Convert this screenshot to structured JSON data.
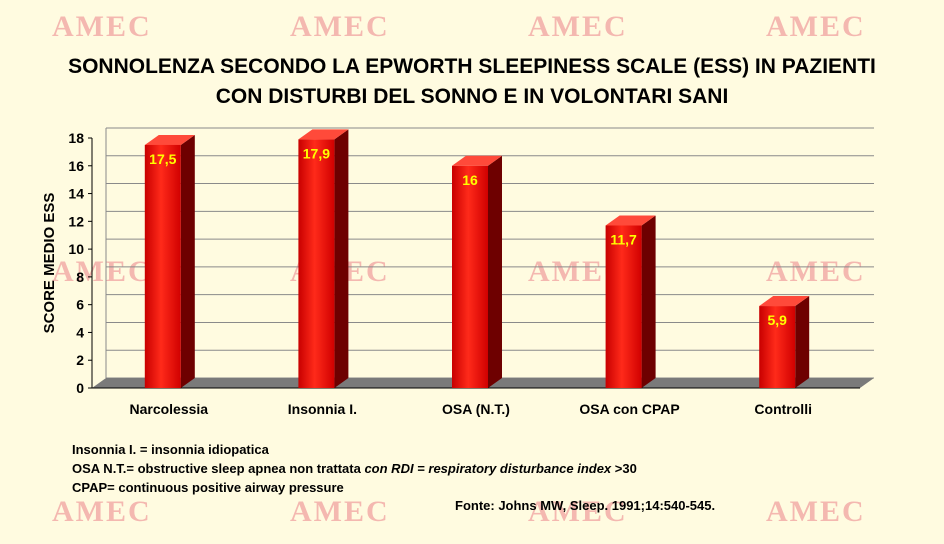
{
  "watermark": {
    "text": "AMEC"
  },
  "title": {
    "line1": "SONNOLENZA SECONDO LA EPWORTH SLEEPINESS SCALE (ESS) IN PAZIENTI",
    "line2": "CON DISTURBI DEL SONNO E    IN   VOLONTARI SANI"
  },
  "chart_data": {
    "type": "bar",
    "categories": [
      "Narcolessia",
      "Insonnia I.",
      "OSA (N.T.)",
      "OSA con CPAP",
      "Controlli"
    ],
    "values": [
      17.5,
      17.9,
      16,
      11.7,
      5.9
    ],
    "value_labels": [
      "17,5",
      "17,9",
      "16",
      "11,7",
      "5,9"
    ],
    "ylabel": "SCORE MEDIO ESS",
    "ylim": [
      0,
      18
    ],
    "yticks": [
      0,
      2,
      4,
      6,
      8,
      10,
      12,
      14,
      16,
      18
    ],
    "grid": true,
    "bar_color": "#e00000",
    "label_color": "#ffff00"
  },
  "notes": {
    "line1": "Insonnia I. = insonnia idiopatica",
    "line2_a": " OSA  N.T.= obstructive sleep apnea non trattata ",
    "line2_b": "con RDI = respiratory disturbance index",
    "line2_c": " >30",
    "line3": "CPAP= continuous positive airway pressure"
  },
  "source": "Fonte: Johns MW, Sleep. 1991;14:540-545."
}
